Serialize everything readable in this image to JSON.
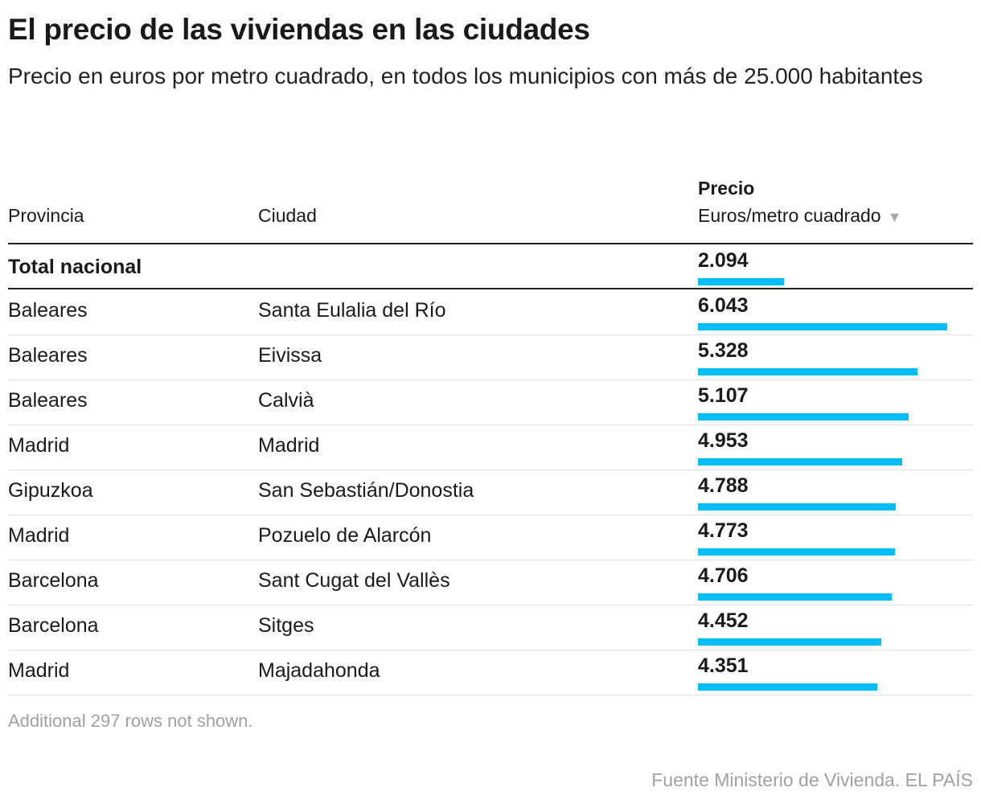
{
  "header": {
    "title": "El precio de las viviendas en las ciudades",
    "subtitle": "Precio en euros por metro cuadrado, en todos los municipios con más de 25.000 habitantes"
  },
  "chart_data": {
    "type": "table",
    "columns": [
      "Provincia",
      "Ciudad",
      "Precio",
      "Euros/metro cuadrado"
    ],
    "sort": "descending by Precio",
    "bar_color": "#00bdf7",
    "total": {
      "label": "Total nacional",
      "display": "2.094",
      "value": 2094
    },
    "rows": [
      {
        "provincia": "Baleares",
        "ciudad": "Santa Eulalia del Río",
        "display": "6.043",
        "value": 6043
      },
      {
        "provincia": "Baleares",
        "ciudad": "Eivissa",
        "display": "5.328",
        "value": 5328
      },
      {
        "provincia": "Baleares",
        "ciudad": "Calvià",
        "display": "5.107",
        "value": 5107
      },
      {
        "provincia": "Madrid",
        "ciudad": "Madrid",
        "display": "4.953",
        "value": 4953
      },
      {
        "provincia": "Gipuzkoa",
        "ciudad": "San Sebastián/Donostia",
        "display": "4.788",
        "value": 4788
      },
      {
        "provincia": "Madrid",
        "ciudad": "Pozuelo de Alarcón",
        "display": "4.773",
        "value": 4773
      },
      {
        "provincia": "Barcelona",
        "ciudad": "Sant Cugat del Vallès",
        "display": "4.706",
        "value": 4706
      },
      {
        "provincia": "Barcelona",
        "ciudad": "Sitges",
        "display": "4.452",
        "value": 4452
      },
      {
        "provincia": "Madrid",
        "ciudad": "Majadahonda",
        "display": "4.351",
        "value": 4351
      }
    ]
  },
  "footer": {
    "note": "Additional 297 rows not shown.",
    "source": "Fuente Ministerio de Vivienda. EL PAÍS"
  }
}
